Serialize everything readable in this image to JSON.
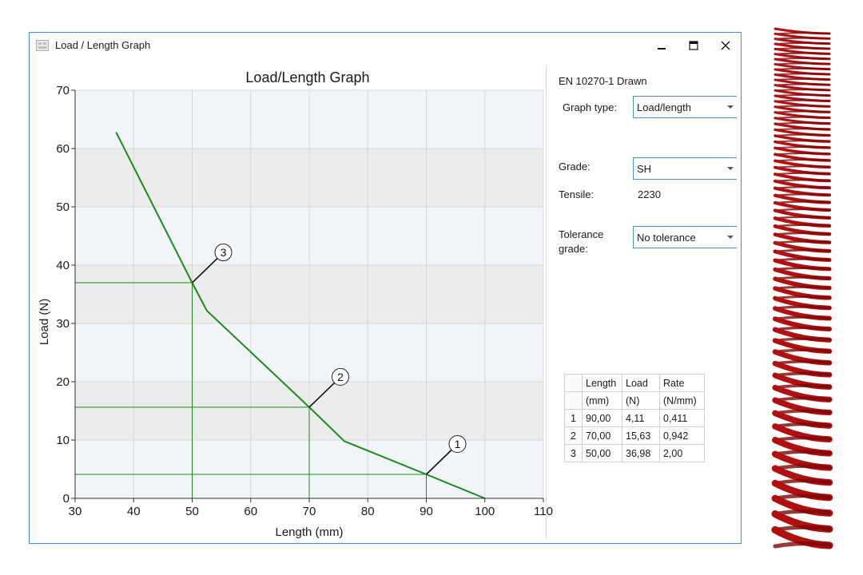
{
  "window": {
    "title": "Load / Length Graph"
  },
  "chart_data": {
    "type": "line",
    "title": "Load/Length Graph",
    "xlabel": "Length (mm)",
    "ylabel": "Load (N)",
    "xlim": [
      30,
      110
    ],
    "ylim": [
      0,
      70
    ],
    "xticks": [
      30,
      40,
      50,
      60,
      70,
      80,
      90,
      100,
      110
    ],
    "yticks": [
      0,
      10,
      20,
      30,
      40,
      50,
      60,
      70
    ],
    "grid": true,
    "series": [
      {
        "x": [
          37,
          50,
          52.5,
          70,
          76,
          90,
          100
        ],
        "y": [
          62.8,
          36.98,
          32.2,
          15.63,
          9.8,
          4.11,
          0
        ]
      }
    ],
    "markers": [
      {
        "label": "1",
        "x": 90,
        "y": 4.11
      },
      {
        "label": "2",
        "x": 70,
        "y": 15.63
      },
      {
        "label": "3",
        "x": 50,
        "y": 36.98
      }
    ],
    "line_color": "#1a8a1a"
  },
  "panel": {
    "standard": "EN 10270-1 Drawn",
    "graph_type_label": "Graph type:",
    "graph_type_value": "Load/length",
    "grade_label": "Grade:",
    "grade_value": "SH",
    "tensile_label": "Tensile:",
    "tensile_value": "2230",
    "tolerance_label_1": "Tolerance",
    "tolerance_label_2": "grade:",
    "tolerance_value": "No tolerance"
  },
  "table": {
    "headers": [
      "Length",
      "Load",
      "Rate"
    ],
    "units": [
      "(mm)",
      "(N)",
      "(N/mm)"
    ],
    "rows": [
      {
        "index": "1",
        "length": "90,00",
        "load": "4,11",
        "rate": "0,411"
      },
      {
        "index": "2",
        "length": "70,00",
        "load": "15,63",
        "rate": "0,942"
      },
      {
        "index": "3",
        "length": "50,00",
        "load": "36,98",
        "rate": "2,00"
      }
    ]
  },
  "icons": {
    "app": "app-icon",
    "minimize": "minimize-icon",
    "maximize": "maximize-icon",
    "close": "close-icon"
  },
  "spring_color": "#b01010"
}
